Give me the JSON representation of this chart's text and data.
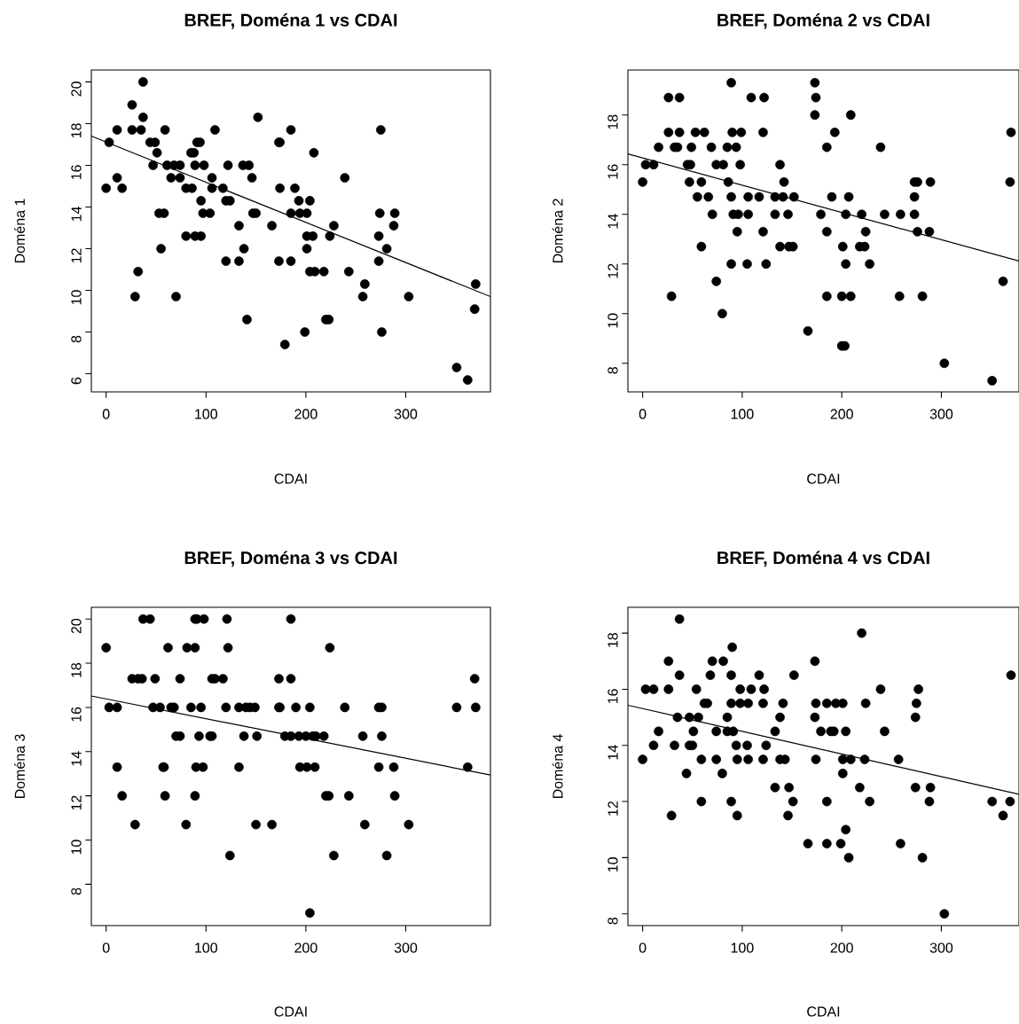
{
  "chart_data": [
    {
      "type": "scatter",
      "title": "BREF, Doména 1 vs CDAI",
      "xlabel": "CDAI",
      "ylabel": "Doména 1",
      "xlim": [
        -14.8,
        384.8
      ],
      "ylim": [
        5.13,
        20.57
      ],
      "xticks": [
        0,
        100,
        200,
        300
      ],
      "yticks": [
        6,
        8,
        10,
        12,
        14,
        16,
        18,
        20
      ],
      "series": [
        {
          "type": "scatter",
          "marker": "circle",
          "color": "#000000",
          "x": [
            37,
            26,
            37,
            152,
            11,
            26,
            35,
            59,
            109,
            185,
            275,
            3,
            44,
            49,
            91,
            94,
            173,
            174,
            51,
            85,
            88,
            208,
            47,
            61,
            68,
            74,
            89,
            98,
            122,
            137,
            143,
            11,
            65,
            74,
            106,
            146,
            239,
            0,
            16,
            80,
            86,
            106,
            117,
            174,
            189,
            95,
            120,
            124,
            193,
            204,
            53,
            58,
            97,
            104,
            147,
            150,
            185,
            194,
            201,
            274,
            289,
            133,
            166,
            228,
            288,
            80,
            89,
            95,
            201,
            207,
            224,
            273,
            55,
            138,
            201,
            281,
            120,
            133,
            173,
            185,
            273,
            32,
            204,
            209,
            218,
            243,
            259,
            370,
            29,
            70,
            257,
            303,
            369,
            141,
            220,
            223,
            199,
            276,
            179,
            351,
            362
          ],
          "values": [
            20,
            18.9,
            18.3,
            18.3,
            17.7,
            17.7,
            17.7,
            17.7,
            17.7,
            17.7,
            17.7,
            17.1,
            17.1,
            17.1,
            17.1,
            17.1,
            17.1,
            17.1,
            16.6,
            16.6,
            16.6,
            16.6,
            16,
            16,
            16,
            16,
            16,
            16,
            16,
            16,
            16,
            15.4,
            15.4,
            15.4,
            15.4,
            15.4,
            15.4,
            14.9,
            14.9,
            14.9,
            14.9,
            14.9,
            14.9,
            14.9,
            14.9,
            14.3,
            14.3,
            14.3,
            14.3,
            14.3,
            13.7,
            13.7,
            13.7,
            13.7,
            13.7,
            13.7,
            13.7,
            13.7,
            13.7,
            13.7,
            13.7,
            13.1,
            13.1,
            13.1,
            13.1,
            12.6,
            12.6,
            12.6,
            12.6,
            12.6,
            12.6,
            12.6,
            12,
            12,
            12,
            12,
            11.4,
            11.4,
            11.4,
            11.4,
            11.4,
            10.9,
            10.9,
            10.9,
            10.9,
            10.9,
            10.3,
            10.3,
            9.7,
            9.7,
            9.7,
            9.7,
            9.1,
            8.6,
            8.6,
            8.6,
            8,
            8,
            7.4,
            6.3,
            5.7
          ]
        },
        {
          "type": "line",
          "color": "#000000",
          "x": [
            -14.8,
            384.8
          ],
          "values": [
            17.4,
            9.7
          ]
        }
      ]
    },
    {
      "type": "scatter",
      "title": "BREF, Doména 2 vs CDAI",
      "xlabel": "CDAI",
      "ylabel": "Doména 2",
      "xlim": [
        -14.8,
        378
      ],
      "ylim": [
        6.85,
        19.81
      ],
      "xticks": [
        0,
        100,
        200,
        300
      ],
      "yticks": [
        8,
        10,
        12,
        14,
        16,
        18
      ],
      "series": [
        {
          "type": "scatter",
          "marker": "circle",
          "color": "#000000",
          "x": [
            89,
            173,
            26,
            37,
            109,
            122,
            174,
            173,
            209,
            26,
            37,
            53,
            62,
            90,
            99,
            121,
            193,
            370,
            16,
            32,
            35,
            49,
            69,
            85,
            94,
            185,
            239,
            3,
            11,
            45,
            48,
            74,
            81,
            98,
            138,
            0,
            47,
            59,
            86,
            142,
            273,
            276,
            289,
            369,
            55,
            66,
            89,
            106,
            117,
            133,
            141,
            152,
            190,
            207,
            273,
            70,
            91,
            96,
            106,
            133,
            146,
            179,
            204,
            220,
            243,
            259,
            273,
            95,
            121,
            185,
            224,
            276,
            288,
            59,
            138,
            147,
            151,
            201,
            218,
            223,
            89,
            105,
            124,
            204,
            228,
            74,
            362,
            29,
            185,
            200,
            209,
            258,
            281,
            80,
            166,
            200,
            203,
            303,
            351
          ],
          "values": [
            19.3,
            19.3,
            18.7,
            18.7,
            18.7,
            18.7,
            18.7,
            18,
            18,
            17.3,
            17.3,
            17.3,
            17.3,
            17.3,
            17.3,
            17.3,
            17.3,
            17.3,
            16.7,
            16.7,
            16.7,
            16.7,
            16.7,
            16.7,
            16.7,
            16.7,
            16.7,
            16,
            16,
            16,
            16,
            16,
            16,
            16,
            16,
            15.3,
            15.3,
            15.3,
            15.3,
            15.3,
            15.3,
            15.3,
            15.3,
            15.3,
            14.7,
            14.7,
            14.7,
            14.7,
            14.7,
            14.7,
            14.7,
            14.7,
            14.7,
            14.7,
            14.7,
            14,
            14,
            14,
            14,
            14,
            14,
            14,
            14,
            14,
            14,
            14,
            14,
            13.3,
            13.3,
            13.3,
            13.3,
            13.3,
            13.3,
            12.7,
            12.7,
            12.7,
            12.7,
            12.7,
            12.7,
            12.7,
            12,
            12,
            12,
            12,
            12,
            11.3,
            11.3,
            10.7,
            10.7,
            10.7,
            10.7,
            10.7,
            10.7,
            10,
            9.3,
            8.7,
            8.7,
            8,
            7.3
          ]
        },
        {
          "type": "line",
          "color": "#000000",
          "x": [
            -14.8,
            378
          ],
          "values": [
            16.43,
            12.12
          ]
        }
      ]
    },
    {
      "type": "scatter",
      "title": "BREF, Doména 3 vs CDAI",
      "xlabel": "CDAI",
      "ylabel": "Doména 3",
      "xlim": [
        -14.8,
        384.8
      ],
      "ylim": [
        6.13,
        20.53
      ],
      "xticks": [
        0,
        100,
        200,
        300
      ],
      "yticks": [
        8,
        10,
        12,
        14,
        16,
        18,
        20
      ],
      "series": [
        {
          "type": "scatter",
          "marker": "circle",
          "color": "#000000",
          "x": [
            37,
            44,
            89,
            91,
            98,
            121,
            185,
            0,
            62,
            81,
            89,
            122,
            224,
            26,
            32,
            36,
            49,
            74,
            106,
            109,
            117,
            173,
            185,
            369,
            3,
            11,
            47,
            54,
            65,
            68,
            85,
            95,
            120,
            133,
            140,
            144,
            149,
            173,
            174,
            190,
            204,
            239,
            273,
            276,
            351,
            370,
            70,
            74,
            93,
            104,
            106,
            138,
            151,
            179,
            185,
            193,
            200,
            207,
            210,
            218,
            257,
            276,
            11,
            57,
            58,
            90,
            97,
            133,
            194,
            201,
            209,
            273,
            288,
            362,
            16,
            59,
            89,
            220,
            223,
            243,
            289,
            29,
            80,
            150,
            166,
            259,
            303,
            124,
            228,
            281,
            204
          ],
          "values": [
            20,
            20,
            20,
            20,
            20,
            20,
            20,
            18.7,
            18.7,
            18.7,
            18.7,
            18.7,
            18.7,
            17.3,
            17.3,
            17.3,
            17.3,
            17.3,
            17.3,
            17.3,
            17.3,
            17.3,
            17.3,
            17.3,
            16,
            16,
            16,
            16,
            16,
            16,
            16,
            16,
            16,
            16,
            16,
            16,
            16,
            16,
            16,
            16,
            16,
            16,
            16,
            16,
            16,
            16,
            14.7,
            14.7,
            14.7,
            14.7,
            14.7,
            14.7,
            14.7,
            14.7,
            14.7,
            14.7,
            14.7,
            14.7,
            14.7,
            14.7,
            14.7,
            14.7,
            13.3,
            13.3,
            13.3,
            13.3,
            13.3,
            13.3,
            13.3,
            13.3,
            13.3,
            13.3,
            13.3,
            13.3,
            12,
            12,
            12,
            12,
            12,
            12,
            12,
            10.7,
            10.7,
            10.7,
            10.7,
            10.7,
            10.7,
            9.3,
            9.3,
            9.3,
            6.7
          ]
        },
        {
          "type": "line",
          "color": "#000000",
          "x": [
            -14.8,
            384.8
          ],
          "values": [
            16.52,
            12.94
          ]
        }
      ]
    },
    {
      "type": "scatter",
      "title": "BREF, Doména 4 vs CDAI",
      "xlabel": "CDAI",
      "ylabel": "Doména 4",
      "xlim": [
        -14.8,
        378
      ],
      "ylim": [
        7.58,
        18.92
      ],
      "xticks": [
        0,
        100,
        200,
        300
      ],
      "yticks": [
        8,
        10,
        12,
        14,
        16,
        18
      ],
      "series": [
        {
          "type": "scatter",
          "marker": "circle",
          "color": "#000000",
          "x": [
            37,
            220,
            90,
            26,
            70,
            81,
            173,
            37,
            68,
            89,
            117,
            152,
            370,
            3,
            11,
            26,
            54,
            98,
            109,
            122,
            239,
            277,
            62,
            65,
            89,
            98,
            106,
            121,
            141,
            174,
            185,
            194,
            201,
            224,
            275,
            35,
            47,
            56,
            85,
            138,
            173,
            274,
            16,
            51,
            74,
            85,
            91,
            133,
            179,
            189,
            192,
            204,
            243,
            11,
            32,
            47,
            50,
            94,
            105,
            124,
            0,
            59,
            74,
            95,
            106,
            121,
            138,
            143,
            174,
            201,
            209,
            223,
            257,
            44,
            80,
            201,
            133,
            147,
            218,
            274,
            289,
            59,
            89,
            151,
            185,
            228,
            288,
            351,
            369,
            29,
            95,
            146,
            362,
            204,
            166,
            185,
            199,
            259,
            207,
            281,
            303
          ],
          "values": [
            18.5,
            18,
            17.5,
            17,
            17,
            17,
            17,
            16.5,
            16.5,
            16.5,
            16.5,
            16.5,
            16.5,
            16,
            16,
            16,
            16,
            16,
            16,
            16,
            16,
            16,
            15.5,
            15.5,
            15.5,
            15.5,
            15.5,
            15.5,
            15.5,
            15.5,
            15.5,
            15.5,
            15.5,
            15.5,
            15.5,
            15,
            15,
            15,
            15,
            15,
            15,
            15,
            14.5,
            14.5,
            14.5,
            14.5,
            14.5,
            14.5,
            14.5,
            14.5,
            14.5,
            14.5,
            14.5,
            14,
            14,
            14,
            14,
            14,
            14,
            14,
            13.5,
            13.5,
            13.5,
            13.5,
            13.5,
            13.5,
            13.5,
            13.5,
            13.5,
            13.5,
            13.5,
            13.5,
            13.5,
            13,
            13,
            13,
            12.5,
            12.5,
            12.5,
            12.5,
            12.5,
            12,
            12,
            12,
            12,
            12,
            12,
            12,
            12,
            11.5,
            11.5,
            11.5,
            11.5,
            11,
            10.5,
            10.5,
            10.5,
            10.5,
            10,
            10,
            8
          ]
        },
        {
          "type": "line",
          "color": "#000000",
          "x": [
            -14.8,
            378
          ],
          "values": [
            15.43,
            12.26
          ]
        }
      ]
    }
  ]
}
